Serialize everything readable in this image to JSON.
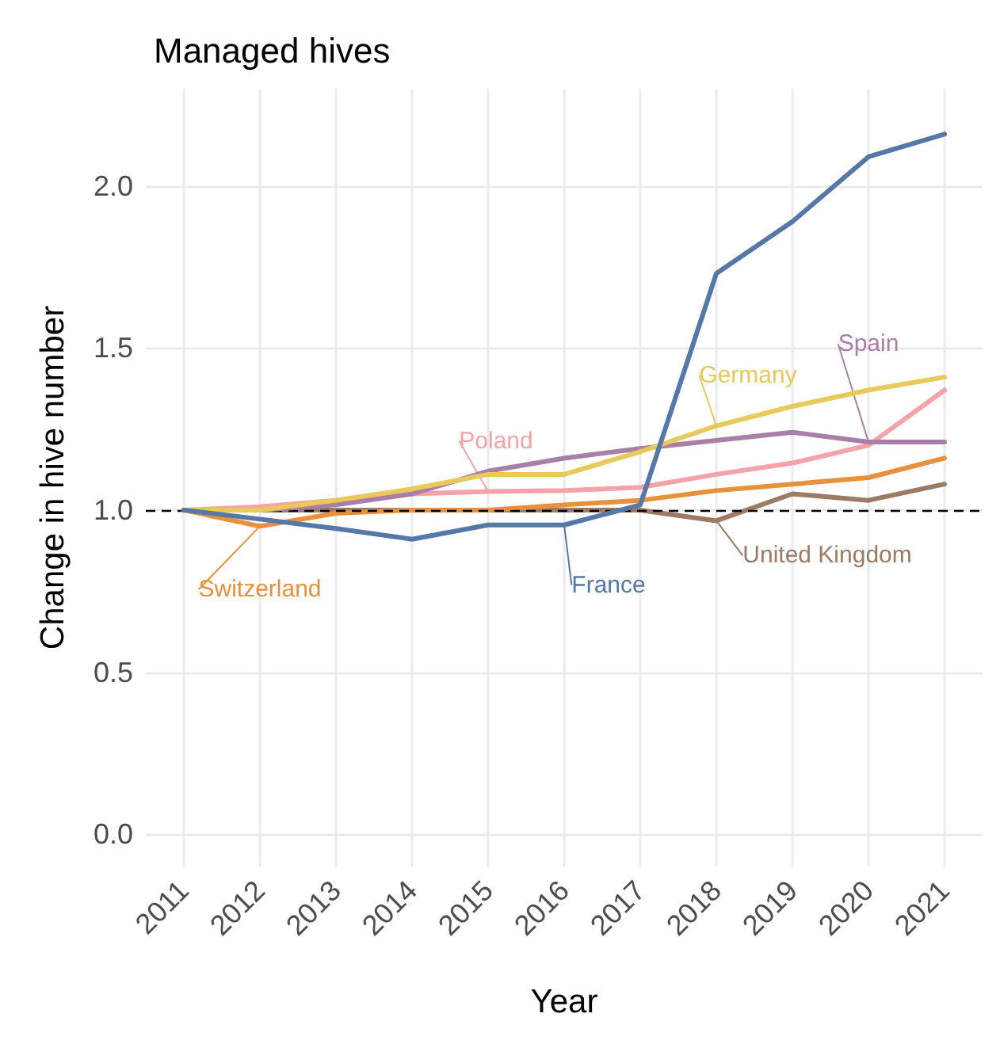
{
  "chart_data": {
    "type": "line",
    "title": "Managed hives",
    "xlabel": "Year",
    "ylabel": "Change in hive number",
    "x": [
      2011,
      2012,
      2013,
      2014,
      2015,
      2016,
      2017,
      2018,
      2019,
      2020,
      2021
    ],
    "series": [
      {
        "name": "United Kingdom",
        "color": "#9c7a64",
        "values": [
          1.0,
          1.0,
          1.0,
          1.0,
          1.0,
          1.0,
          1.0,
          0.967,
          1.05,
          1.03,
          1.08
        ]
      },
      {
        "name": "Switzerland",
        "color": "#e8913c",
        "values": [
          1.0,
          0.95,
          0.99,
          1.0,
          1.0,
          1.016,
          1.03,
          1.06,
          1.08,
          1.1,
          1.16
        ]
      },
      {
        "name": "Poland",
        "color": "#f4a3a8",
        "values": [
          1.0,
          1.01,
          1.03,
          1.05,
          1.057,
          1.06,
          1.07,
          1.11,
          1.145,
          1.2,
          1.37
        ]
      },
      {
        "name": "Spain",
        "color": "#a97fa8",
        "values": [
          1.0,
          1.0,
          1.016,
          1.05,
          1.12,
          1.16,
          1.19,
          1.215,
          1.24,
          1.21,
          1.21
        ]
      },
      {
        "name": "Germany",
        "color": "#e8c95a",
        "values": [
          1.0,
          1.0,
          1.03,
          1.065,
          1.11,
          1.11,
          1.18,
          1.26,
          1.32,
          1.37,
          1.41
        ]
      },
      {
        "name": "France",
        "color": "#5578a8",
        "values": [
          1.0,
          0.972,
          0.943,
          0.91,
          0.954,
          0.954,
          1.016,
          1.73,
          1.89,
          2.09,
          2.16
        ]
      }
    ],
    "xlim": [
      2010.5,
      2021.5
    ],
    "xticks": [
      2011,
      2012,
      2013,
      2014,
      2015,
      2016,
      2017,
      2018,
      2019,
      2020,
      2021
    ],
    "ylim": [
      -0.1,
      2.3
    ],
    "yticks": [
      {
        "value": 0,
        "label": "0.0"
      },
      0.5,
      {
        "value": 1,
        "label": "1.0"
      },
      1.5,
      {
        "value": 2,
        "label": "2.0"
      }
    ],
    "ref_lines": [
      {
        "axis": "y",
        "value": 1.0,
        "color": "#000000",
        "line_style": "dashed"
      }
    ],
    "grid": true,
    "legend": false
  }
}
